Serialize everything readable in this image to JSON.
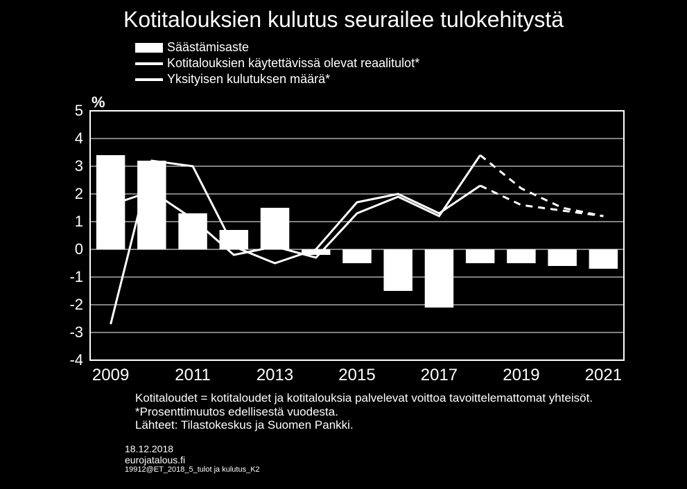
{
  "title": "Kotitalouksien kulutus seurailee tulokehitystä",
  "y_unit": "%",
  "legend": {
    "bar": "Säästämisaste",
    "line1": "Kotitalouksien käytettävissä olevat reaalitulot*",
    "line2": "Yksityisen kulutuksen määrä*"
  },
  "chart": {
    "type": "bar+line",
    "background_color": "#000000",
    "grid_color": "#ffffff",
    "series_color": "#ffffff",
    "ylim": [
      -4,
      5
    ],
    "ytick_step": 1,
    "yticks": [
      5,
      4,
      3,
      2,
      1,
      0,
      -1,
      -2,
      -3,
      -4
    ],
    "years": [
      2009,
      2010,
      2011,
      2012,
      2013,
      2014,
      2015,
      2016,
      2017,
      2018,
      2019,
      2020,
      2021
    ],
    "x_tick_labels": [
      "2009",
      "2011",
      "2013",
      "2015",
      "2017",
      "2019",
      "2021"
    ],
    "bars": [
      3.4,
      3.2,
      1.3,
      0.7,
      1.5,
      -0.2,
      -0.5,
      -1.5,
      -2.1,
      -0.5,
      -0.5,
      -0.6,
      -0.7
    ],
    "line_income": [
      1.6,
      2.1,
      1.1,
      -0.2,
      0.1,
      -0.3,
      1.3,
      1.9,
      1.2,
      3.4,
      2.2,
      1.5,
      1.2
    ],
    "line_income_dashed_from": 9,
    "line_consumption": [
      -2.7,
      3.2,
      3.0,
      0.1,
      -0.5,
      0.0,
      1.7,
      2.0,
      1.3,
      2.3,
      1.6,
      1.4,
      1.2
    ],
    "line_consumption_dashed_from": 9,
    "bar_width": 0.7,
    "line_width": 3,
    "title_fontsize": 32,
    "label_fontsize": 22
  },
  "footnotes": {
    "l1": "Kotitaloudet = kotitaloudet ja kotitalouksia palvelevat voittoa tavoittelemattomat yhteisöt.",
    "l2": "*Prosenttimuutos edellisestä vuodesta.",
    "l3": "Lähteet: Tilastokeskus ja Suomen Pankki."
  },
  "meta": {
    "date": "18.12.2018",
    "site": "eurojatalous.fi",
    "code": "19912@ET_2018_5_tulot ja kulutus_K2"
  }
}
